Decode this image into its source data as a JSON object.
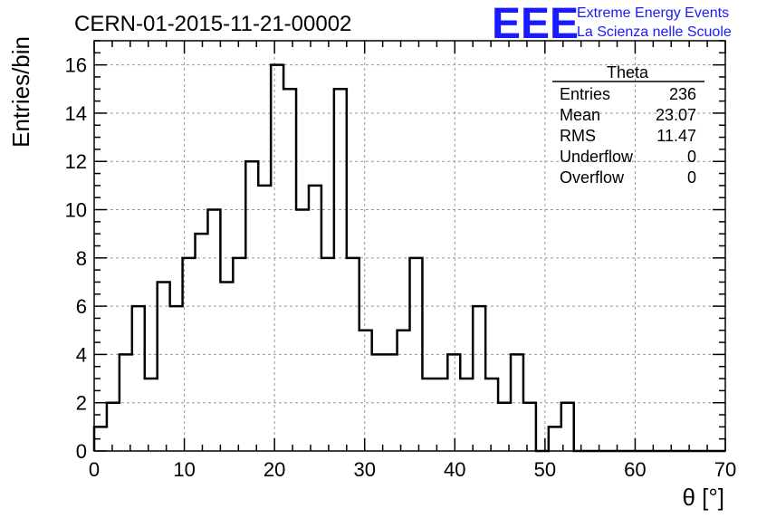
{
  "chart_data": {
    "type": "bar",
    "style": "step-histogram",
    "title": "CERN-01-2015-11-21-00002",
    "xlabel": "θ [°]",
    "ylabel": "Entries/bin",
    "xlim": [
      0,
      70
    ],
    "ylim": [
      0,
      17
    ],
    "x_ticks": [
      0,
      10,
      20,
      30,
      40,
      50,
      60,
      70
    ],
    "y_ticks": [
      0,
      2,
      4,
      6,
      8,
      10,
      12,
      14,
      16
    ],
    "grid": true,
    "bin_width": 1.4,
    "values": [
      1,
      2,
      4,
      6,
      3,
      7,
      6,
      8,
      9,
      10,
      7,
      8,
      12,
      11,
      16,
      15,
      10,
      11,
      8,
      15,
      8,
      5,
      4,
      4,
      5,
      8,
      3,
      3,
      4,
      3,
      6,
      3,
      2,
      4,
      2,
      0,
      1,
      2,
      0,
      0,
      0,
      0,
      0,
      0,
      0,
      0,
      0,
      0,
      0,
      0
    ],
    "line_color": "#000000",
    "stats_box": {
      "name": "Theta",
      "rows": [
        {
          "label": "Entries",
          "value": "236"
        },
        {
          "label": "Mean",
          "value": "23.07"
        },
        {
          "label": "RMS",
          "value": "11.47"
        },
        {
          "label": "Underflow",
          "value": "0"
        },
        {
          "label": "Overflow",
          "value": "0"
        }
      ]
    }
  },
  "logo": {
    "mark": "EEE",
    "line1": "Extreme Energy Events",
    "line2": "La Scienza nelle Scuole",
    "color": "#1a1aff"
  }
}
